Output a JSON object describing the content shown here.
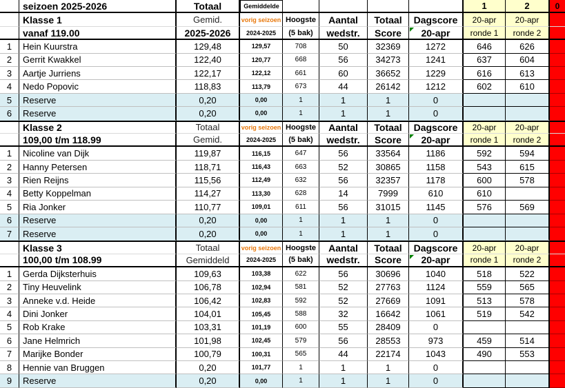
{
  "colors": {
    "flag_red": "#ff0000",
    "header_yellow": "#ffffcc",
    "reserve_blue": "#daeef3",
    "accent_orange": "#e8780c"
  },
  "top": {
    "season": "seizoen 2025-2026",
    "totaal": "Totaal",
    "gemiddelde": "Gemiddelde",
    "round1_num": "1",
    "round2_num": "2",
    "flag": "0"
  },
  "headers": {
    "vorig": "vorig seizoen",
    "prev_season": "2024-2025",
    "hoogste": "Hoogste",
    "bak": "(5 bak)",
    "aantal": "Aantal",
    "wedstr": "wedstr.",
    "totaal": "Totaal",
    "score": "Score",
    "dagscore": "Dagscore",
    "date": "20-apr",
    "ronde1": "ronde 1",
    "ronde2": "ronde 2"
  },
  "blocks": [
    {
      "name": "Klasse 1",
      "range": "vanaf 119.00",
      "avg_label_1": "Gemid.",
      "avg_label_2": "2025-2026",
      "rows": [
        {
          "n": "1",
          "name": "Hein Kuurstra",
          "avg": "129,48",
          "prev": "129,57",
          "high": "708",
          "games": "50",
          "total": "32369",
          "day": "1272",
          "r1": "646",
          "r2": "626",
          "reserve": false
        },
        {
          "n": "2",
          "name": "Gerrit Kwakkel",
          "avg": "122,40",
          "prev": "120,77",
          "high": "668",
          "games": "56",
          "total": "34273",
          "day": "1241",
          "r1": "637",
          "r2": "604",
          "reserve": false
        },
        {
          "n": "3",
          "name": "Aartje Jurriens",
          "avg": "122,17",
          "prev": "122,12",
          "high": "661",
          "games": "60",
          "total": "36652",
          "day": "1229",
          "r1": "616",
          "r2": "613",
          "reserve": false
        },
        {
          "n": "4",
          "name": "Nedo Popovic",
          "avg": "118,83",
          "prev": "113,79",
          "high": "673",
          "games": "44",
          "total": "26142",
          "day": "1212",
          "r1": "602",
          "r2": "610",
          "reserve": false
        },
        {
          "n": "5",
          "name": "Reserve",
          "avg": "0,20",
          "prev": "0,00",
          "high": "1",
          "games": "1",
          "total": "1",
          "day": "0",
          "r1": "",
          "r2": "",
          "reserve": true
        },
        {
          "n": "6",
          "name": "Reserve",
          "avg": "0,20",
          "prev": "0,00",
          "high": "1",
          "games": "1",
          "total": "1",
          "day": "0",
          "r1": "",
          "r2": "",
          "reserve": true
        }
      ]
    },
    {
      "name": "Klasse 2",
      "range": "109,00 t/m 118.99",
      "avg_label_1": "Totaal",
      "avg_label_2": "Gemid.",
      "rows": [
        {
          "n": "1",
          "name": "Nicoline van Dijk",
          "avg": "119,87",
          "prev": "116,15",
          "high": "647",
          "games": "56",
          "total": "33564",
          "day": "1186",
          "r1": "592",
          "r2": "594",
          "reserve": false
        },
        {
          "n": "2",
          "name": "Hanny Petersen",
          "avg": "118,71",
          "prev": "116,43",
          "high": "663",
          "games": "52",
          "total": "30865",
          "day": "1158",
          "r1": "543",
          "r2": "615",
          "reserve": false
        },
        {
          "n": "3",
          "name": "Rien Reijns",
          "avg": "115,56",
          "prev": "112,49",
          "high": "632",
          "games": "56",
          "total": "32357",
          "day": "1178",
          "r1": "600",
          "r2": "578",
          "reserve": false
        },
        {
          "n": "4",
          "name": "Betty Koppelman",
          "avg": "114,27",
          "prev": "113,30",
          "high": "628",
          "games": "14",
          "total": "7999",
          "day": "610",
          "r1": "610",
          "r2": "",
          "reserve": false
        },
        {
          "n": "5",
          "name": "Ria Jonker",
          "avg": "110,77",
          "prev": "109,01",
          "high": "611",
          "games": "56",
          "total": "31015",
          "day": "1145",
          "r1": "576",
          "r2": "569",
          "reserve": false
        },
        {
          "n": "6",
          "name": "Reserve",
          "avg": "0,20",
          "prev": "0,00",
          "high": "1",
          "games": "1",
          "total": "1",
          "day": "0",
          "r1": "",
          "r2": "",
          "reserve": true
        },
        {
          "n": "7",
          "name": "Reserve",
          "avg": "0,20",
          "prev": "0,00",
          "high": "1",
          "games": "1",
          "total": "1",
          "day": "0",
          "r1": "",
          "r2": "",
          "reserve": true
        }
      ]
    },
    {
      "name": "Klasse 3",
      "range": "100,00 t/m 108.99",
      "avg_label_1": "Totaal",
      "avg_label_2": "Gemiddeld",
      "rows": [
        {
          "n": "1",
          "name": "Gerda Dijksterhuis",
          "avg": "109,63",
          "prev": "103,38",
          "high": "622",
          "games": "56",
          "total": "30696",
          "day": "1040",
          "r1": "518",
          "r2": "522",
          "reserve": false
        },
        {
          "n": "2",
          "name": "Tiny Heuvelink",
          "avg": "106,78",
          "prev": "102,94",
          "high": "581",
          "games": "52",
          "total": "27763",
          "day": "1124",
          "r1": "559",
          "r2": "565",
          "reserve": false
        },
        {
          "n": "3",
          "name": "Anneke v.d. Heide",
          "avg": "106,42",
          "prev": "102,83",
          "high": "592",
          "games": "52",
          "total": "27669",
          "day": "1091",
          "r1": "513",
          "r2": "578",
          "reserve": false
        },
        {
          "n": "4",
          "name": "Dini Jonker",
          "avg": "104,01",
          "prev": "105,45",
          "high": "588",
          "games": "32",
          "total": "16642",
          "day": "1061",
          "r1": "519",
          "r2": "542",
          "reserve": false
        },
        {
          "n": "5",
          "name": "Rob Krake",
          "avg": "103,31",
          "prev": "101,19",
          "high": "600",
          "games": "55",
          "total": "28409",
          "day": "0",
          "r1": "",
          "r2": "",
          "reserve": false
        },
        {
          "n": "6",
          "name": "Jane Helmrich",
          "avg": "101,98",
          "prev": "102,45",
          "high": "579",
          "games": "56",
          "total": "28553",
          "day": "973",
          "r1": "459",
          "r2": "514",
          "reserve": false
        },
        {
          "n": "7",
          "name": "Marijke Bonder",
          "avg": "100,79",
          "prev": "100,31",
          "high": "565",
          "games": "44",
          "total": "22174",
          "day": "1043",
          "r1": "490",
          "r2": "553",
          "reserve": false
        },
        {
          "n": "8",
          "name": "Hennie van Bruggen",
          "avg": "0,20",
          "prev": "101,77",
          "high": "1",
          "games": "1",
          "total": "1",
          "day": "0",
          "r1": "",
          "r2": "",
          "reserve": false
        },
        {
          "n": "9",
          "name": "Reserve",
          "avg": "0,20",
          "prev": "0,00",
          "high": "1",
          "games": "1",
          "total": "1",
          "day": "0",
          "r1": "",
          "r2": "",
          "reserve": true
        }
      ]
    }
  ]
}
